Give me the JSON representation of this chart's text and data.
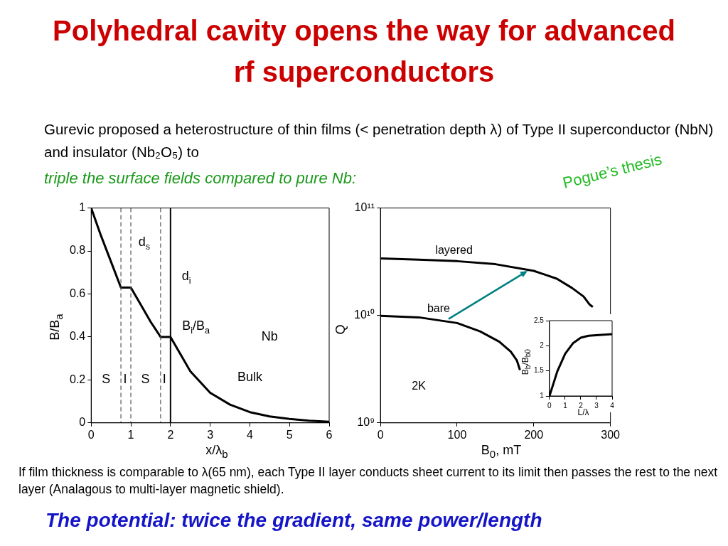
{
  "chart_data": [
    {
      "type": "line",
      "title": "Polyhedral cavity opens the way for advanced rf superconductors",
      "subtitle": "Gurevic proposed a heterostructure of thin films (< penetration depth λ) of Type II superconductor (NbN) and insulator (Nb₂O₅) to",
      "xlabel": "x/λ$_{b}$",
      "ylabel": "B/B$_{a}$",
      "x": [
        0,
        0.25,
        0.5,
        0.75,
        1,
        1.25,
        1.5,
        1.75,
        2,
        2.5,
        3,
        3.5,
        4,
        4.5,
        5,
        5.5,
        6
      ],
      "series": [
        {
          "color": "#000000",
          "values": [
            1,
            0.87,
            0.75,
            0.63,
            0.63,
            0.55,
            0.47,
            0.4,
            0.4,
            0.24,
            0.14,
            0.085,
            0.05,
            0.03,
            0.018,
            0.01,
            0.005
          ]
        }
      ],
      "xlim": [
        0,
        6
      ],
      "xticks": [
        0,
        1,
        2,
        3,
        4,
        5,
        6
      ],
      "ylim": [
        0,
        1
      ],
      "yticks": [
        0,
        0.2,
        0.4,
        0.6,
        0.8,
        1
      ],
      "grid": false,
      "ref_lines": [
        {
          "axis": "x",
          "value": 0.75,
          "color": "#555555",
          "line_style": "dashed"
        },
        {
          "axis": "x",
          "value": 1,
          "color": "#555555",
          "line_style": "dashed"
        },
        {
          "axis": "x",
          "value": 1.75,
          "color": "#555555",
          "line_style": "dashed"
        },
        {
          "axis": "x",
          "value": 2,
          "color": "#000000",
          "line_style": "solid"
        }
      ],
      "annotations": [
        "S",
        "I",
        "S",
        "I",
        "d$_{s}$",
        "d$_{i}$",
        "B$_{i}$/B$_{a}$",
        "Bulk",
        "Nb",
        "triple the surface fields compared to pure Nb:",
        "Pogue’s thesis",
        "If film thickness is comparable to λ(65 nm), each Type II layer conducts sheet current to its limit then passes the rest to the next layer (Analagous to multi-layer magnetic shield).",
        "The potential: twice the gradient, same power/length"
      ]
    },
    {
      "type": "line",
      "xlabel": "B$_{0}$, mT",
      "ylabel": "Q",
      "log": true,
      "series": [
        {
          "color": "#000000",
          "x": [
            0,
            50,
            100,
            150,
            200,
            230,
            250,
            265,
            273,
            277
          ],
          "values": [
            34000000000.0,
            33000000000.0,
            32000000000.0,
            30000000000.0,
            26000000000.0,
            22000000000.0,
            18000000000.0,
            15000000000.0,
            12600000000.0,
            12000000000.0
          ]
        },
        {
          "color": "#000000",
          "x": [
            0,
            50,
            100,
            130,
            155,
            170,
            178,
            182
          ],
          "values": [
            9900000000.0,
            9600000000.0,
            8500000000.0,
            7100000000.0,
            5700000000.0,
            4600000000.0,
            3800000000.0,
            3100000000.0
          ]
        }
      ],
      "xlim": [
        0,
        300
      ],
      "xticks": [
        0,
        100,
        200,
        300
      ],
      "ylim": [
        1000000000.0,
        100000000000.0
      ],
      "yticks": [
        {
          "value": 1000000000.0,
          "label": "10⁹"
        },
        {
          "value": 10000000000.0,
          "label": "10¹⁰"
        },
        {
          "value": 100000000000.0,
          "label": "10¹¹"
        }
      ],
      "grid": false,
      "annotations": [
        "layered",
        {
          "text": "bare",
          "x": 192,
          "y": 26000000000.0
        },
        "2K"
      ]
    },
    {
      "type": "line",
      "xlabel": "L/λ",
      "ylabel": "B$_{b}$/B$_{b0}$",
      "x": [
        0,
        0.5,
        1,
        1.5,
        2,
        2.5,
        3,
        4
      ],
      "series": [
        {
          "color": "#000000",
          "values": [
            1,
            1.49,
            1.84,
            2.05,
            2.16,
            2.2,
            2.21,
            2.23
          ]
        }
      ],
      "xlim": [
        0,
        4
      ],
      "xticks": [
        0,
        1,
        2,
        3,
        4
      ],
      "ylim": [
        1,
        2.5
      ],
      "yticks": [
        1,
        1.5,
        2,
        2.5
      ],
      "grid": false
    }
  ]
}
